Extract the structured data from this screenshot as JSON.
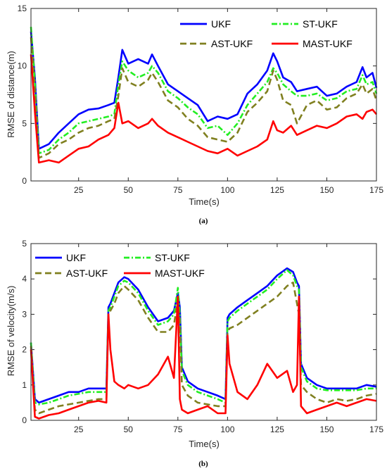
{
  "chart_data": [
    {
      "type": "line",
      "panel_label": "(a)",
      "xlabel": "Time(s)",
      "ylabel": "RMSE of distance(m)",
      "xlim": [
        1,
        175
      ],
      "ylim": [
        0,
        15
      ],
      "xticks": [
        "25",
        "50",
        "75",
        "100",
        "125",
        "150",
        "175"
      ],
      "yticks": [
        "0",
        "5",
        "10",
        "15"
      ],
      "legend_position": "top-right",
      "x": [
        1,
        3,
        5,
        10,
        15,
        20,
        25,
        30,
        35,
        40,
        43,
        45,
        47,
        50,
        55,
        60,
        62,
        65,
        70,
        75,
        80,
        85,
        90,
        95,
        100,
        105,
        110,
        115,
        120,
        123,
        125,
        128,
        132,
        135,
        140,
        145,
        150,
        155,
        160,
        165,
        168,
        170,
        173,
        175
      ],
      "series": [
        {
          "name": "UKF",
          "color": "#0000ff",
          "dash": "solid",
          "values": [
            13.0,
            9.0,
            2.8,
            3.2,
            4.2,
            5.0,
            5.8,
            6.2,
            6.3,
            6.6,
            6.8,
            9.0,
            11.4,
            10.2,
            10.6,
            10.2,
            11.0,
            10.0,
            8.4,
            7.8,
            7.2,
            6.6,
            5.2,
            5.6,
            5.4,
            5.8,
            7.6,
            8.4,
            9.6,
            11.1,
            10.4,
            9.0,
            8.6,
            7.8,
            8.0,
            8.2,
            7.4,
            7.6,
            8.2,
            8.6,
            9.9,
            9.0,
            9.4,
            8.1
          ]
        },
        {
          "name": "ST-UKF",
          "color": "#22ee22",
          "dash": "dashdot",
          "values": [
            13.4,
            8.6,
            2.4,
            2.7,
            3.6,
            4.2,
            5.0,
            5.2,
            5.4,
            5.6,
            5.8,
            8.4,
            10.4,
            9.6,
            9.0,
            9.4,
            10.0,
            9.4,
            7.8,
            7.2,
            6.4,
            5.8,
            4.6,
            4.8,
            4.0,
            5.0,
            6.6,
            7.6,
            8.6,
            9.8,
            9.4,
            8.4,
            7.8,
            7.4,
            7.4,
            7.6,
            7.0,
            7.2,
            7.8,
            8.0,
            9.2,
            8.4,
            8.6,
            7.6
          ]
        },
        {
          "name": "AST-UKF",
          "color": "#808020",
          "dash": "dashed",
          "values": [
            12.5,
            8.0,
            2.0,
            2.4,
            3.2,
            3.6,
            4.2,
            4.6,
            4.8,
            5.2,
            5.4,
            7.4,
            9.8,
            8.6,
            8.2,
            8.8,
            9.4,
            8.6,
            7.0,
            6.4,
            5.4,
            4.8,
            3.8,
            3.6,
            3.4,
            4.2,
            6.0,
            6.8,
            7.8,
            9.6,
            8.8,
            7.0,
            6.6,
            5.0,
            6.6,
            7.0,
            6.2,
            6.4,
            7.2,
            7.6,
            8.4,
            7.6,
            8.0,
            7.0
          ]
        },
        {
          "name": "MAST-UKF",
          "color": "#ff0000",
          "dash": "solid",
          "values": [
            11.0,
            6.0,
            1.6,
            1.8,
            1.6,
            2.2,
            2.8,
            3.0,
            3.6,
            4.0,
            4.6,
            6.8,
            5.0,
            5.2,
            4.6,
            5.0,
            5.4,
            4.8,
            4.2,
            3.8,
            3.4,
            3.0,
            2.6,
            2.4,
            2.8,
            2.2,
            2.6,
            3.0,
            3.6,
            5.2,
            4.4,
            4.2,
            4.8,
            4.0,
            4.4,
            4.8,
            4.6,
            5.0,
            5.6,
            5.8,
            5.4,
            6.0,
            6.2,
            5.8
          ]
        }
      ]
    },
    {
      "type": "line",
      "panel_label": "(b)",
      "xlabel": "Time(s)",
      "ylabel": "RMSE of velocity(m/s)",
      "xlim": [
        1,
        175
      ],
      "ylim": [
        0,
        5
      ],
      "xticks": [
        "25",
        "50",
        "75",
        "100",
        "125",
        "150",
        "175"
      ],
      "yticks": [
        "0",
        "1",
        "2",
        "3",
        "4",
        "5"
      ],
      "legend_position": "top",
      "x": [
        1,
        3,
        5,
        10,
        15,
        20,
        25,
        30,
        35,
        39,
        40,
        41,
        43,
        45,
        48,
        50,
        55,
        60,
        65,
        70,
        73,
        75,
        76,
        77,
        80,
        85,
        90,
        95,
        99,
        100,
        101,
        105,
        110,
        115,
        120,
        125,
        130,
        133,
        135,
        136,
        137,
        140,
        145,
        150,
        155,
        160,
        165,
        170,
        175
      ],
      "series": [
        {
          "name": "UKF",
          "color": "#0000ff",
          "dash": "solid",
          "values": [
            2.2,
            0.6,
            0.5,
            0.6,
            0.7,
            0.8,
            0.8,
            0.9,
            0.9,
            0.9,
            3.2,
            3.3,
            3.6,
            3.9,
            4.05,
            4.0,
            3.7,
            3.2,
            2.8,
            2.9,
            3.1,
            3.6,
            3.2,
            1.5,
            1.1,
            0.9,
            0.8,
            0.7,
            0.6,
            2.9,
            3.0,
            3.2,
            3.4,
            3.6,
            3.8,
            4.1,
            4.3,
            4.2,
            3.9,
            3.8,
            1.6,
            1.2,
            1.0,
            0.9,
            0.9,
            0.9,
            0.9,
            1.0,
            0.95
          ]
        },
        {
          "name": "ST-UKF",
          "color": "#22ee22",
          "dash": "dashdot",
          "values": [
            2.2,
            0.5,
            0.45,
            0.5,
            0.6,
            0.7,
            0.75,
            0.8,
            0.8,
            0.8,
            3.1,
            3.2,
            3.5,
            3.8,
            3.95,
            3.9,
            3.6,
            3.1,
            2.7,
            2.8,
            3.0,
            3.75,
            3.0,
            1.4,
            1.0,
            0.8,
            0.7,
            0.6,
            0.5,
            2.8,
            2.9,
            3.1,
            3.3,
            3.5,
            3.7,
            4.0,
            4.25,
            4.1,
            3.8,
            3.7,
            1.5,
            1.1,
            0.9,
            0.85,
            0.85,
            0.85,
            0.85,
            0.9,
            0.9
          ]
        },
        {
          "name": "AST-UKF",
          "color": "#808020",
          "dash": "dashed",
          "values": [
            2.1,
            0.3,
            0.2,
            0.3,
            0.4,
            0.45,
            0.5,
            0.55,
            0.6,
            0.6,
            3.0,
            3.1,
            3.3,
            3.6,
            3.8,
            3.7,
            3.4,
            2.9,
            2.5,
            2.5,
            2.7,
            3.4,
            2.8,
            1.0,
            0.7,
            0.5,
            0.45,
            0.4,
            0.4,
            2.5,
            2.6,
            2.7,
            2.9,
            3.1,
            3.3,
            3.5,
            3.8,
            3.9,
            3.3,
            3.0,
            1.0,
            0.8,
            0.6,
            0.5,
            0.6,
            0.55,
            0.6,
            0.7,
            0.75
          ]
        },
        {
          "name": "MAST-UKF",
          "color": "#ff0000",
          "dash": "solid",
          "values": [
            2.0,
            0.1,
            0.05,
            0.15,
            0.2,
            0.3,
            0.4,
            0.5,
            0.55,
            0.5,
            3.0,
            2.0,
            1.1,
            1.0,
            0.9,
            1.0,
            0.9,
            1.0,
            1.3,
            1.8,
            1.2,
            3.5,
            0.6,
            0.3,
            0.2,
            0.3,
            0.4,
            0.2,
            0.2,
            2.4,
            1.6,
            0.8,
            0.6,
            1.0,
            1.6,
            1.2,
            1.4,
            0.8,
            1.0,
            3.5,
            0.4,
            0.2,
            0.3,
            0.4,
            0.5,
            0.4,
            0.5,
            0.6,
            0.55
          ]
        }
      ]
    }
  ]
}
